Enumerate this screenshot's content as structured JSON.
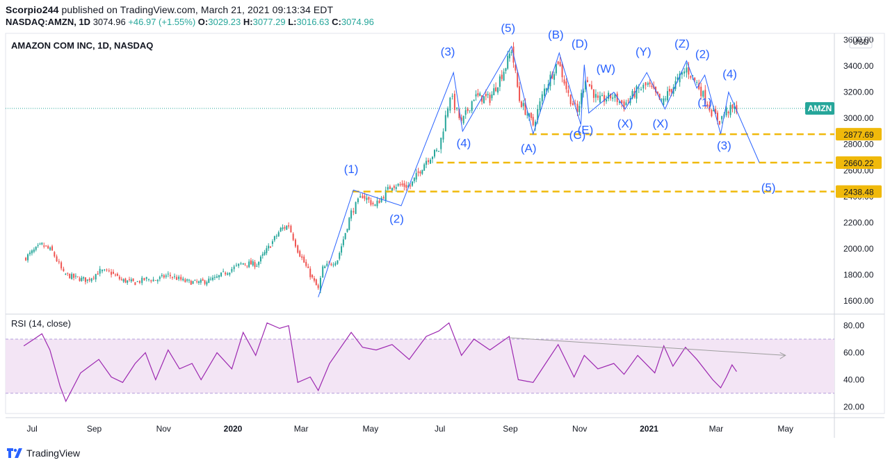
{
  "header": {
    "publisher": "Scorpio244",
    "published_text": " published on TradingView.com, March 21, 2021 09:13:34 EDT",
    "symbol": "NASDAQ:AMZN, 1D",
    "last": "3074.96",
    "change": "+46.97 (+1.55%)",
    "o_label": "O:",
    "o_value": "3029.23",
    "h_label": "H:",
    "h_value": "3077.29",
    "l_label": "L:",
    "l_value": "3016.63",
    "c_label": "C:",
    "c_value": "3074.96"
  },
  "footer": {
    "brand": "TradingView"
  },
  "chart_data": {
    "type": "candlestick",
    "title": "AMAZON COM INC, 1D, NASDAQ",
    "currency": "USD",
    "ticker_badge": "AMZN",
    "current_price": 3074.96,
    "colors": {
      "up": "#26a69a",
      "down": "#ef5350",
      "wave": "#2962ff",
      "level": "#f0b90b",
      "rsi": "#9c27b0",
      "rsi_band": "#f3e5f5"
    },
    "price_axis": {
      "min": 1500,
      "max": 3650,
      "ticks": [
        "1600.00",
        "1800.00",
        "2000.00",
        "2200.00",
        "2400.00",
        "2600.00",
        "2800.00",
        "3000.00",
        "3200.00",
        "3400.00",
        "3600.00"
      ]
    },
    "time_axis": {
      "labels": [
        "Jul",
        "Sep",
        "Nov",
        "2020",
        "Mar",
        "May",
        "Jul",
        "Sep",
        "Nov",
        "2021",
        "Mar",
        "May"
      ],
      "bold": [
        "2020",
        "2021"
      ]
    },
    "price_series": [
      [
        "2019-07-01",
        1922
      ],
      [
        "2019-07-10",
        1985
      ],
      [
        "2019-07-17",
        2030
      ],
      [
        "2019-07-26",
        1980
      ],
      [
        "2019-08-05",
        1810
      ],
      [
        "2019-08-14",
        1780
      ],
      [
        "2019-08-26",
        1760
      ],
      [
        "2019-09-06",
        1830
      ],
      [
        "2019-09-16",
        1815
      ],
      [
        "2019-09-25",
        1760
      ],
      [
        "2019-10-07",
        1740
      ],
      [
        "2019-10-17",
        1770
      ],
      [
        "2019-10-25",
        1760
      ],
      [
        "2019-11-05",
        1800
      ],
      [
        "2019-11-20",
        1750
      ],
      [
        "2019-12-02",
        1740
      ],
      [
        "2019-12-16",
        1770
      ],
      [
        "2019-12-31",
        1847
      ],
      [
        "2020-01-10",
        1890
      ],
      [
        "2020-01-22",
        1880
      ],
      [
        "2020-02-03",
        2030
      ],
      [
        "2020-02-12",
        2150
      ],
      [
        "2020-02-19",
        2180
      ],
      [
        "2020-02-27",
        1990
      ],
      [
        "2020-03-09",
        1800
      ],
      [
        "2020-03-16",
        1690
      ],
      [
        "2020-03-20",
        1850
      ],
      [
        "2020-04-02",
        1920
      ],
      [
        "2020-04-14",
        2280
      ],
      [
        "2020-04-24",
        2410
      ],
      [
        "2020-05-05",
        2330
      ],
      [
        "2020-05-20",
        2490
      ],
      [
        "2020-06-05",
        2480
      ],
      [
        "2020-06-19",
        2680
      ],
      [
        "2020-06-30",
        2758
      ],
      [
        "2020-07-10",
        3180
      ],
      [
        "2020-07-20",
        2960
      ],
      [
        "2020-07-31",
        3165
      ],
      [
        "2020-08-14",
        3150
      ],
      [
        "2020-08-28",
        3400
      ],
      [
        "2020-09-02",
        3530
      ],
      [
        "2020-09-09",
        3140
      ],
      [
        "2020-09-21",
        2950
      ],
      [
        "2020-10-01",
        3220
      ],
      [
        "2020-10-13",
        3440
      ],
      [
        "2020-10-22",
        3180
      ],
      [
        "2020-10-30",
        3040
      ],
      [
        "2020-11-06",
        3310
      ],
      [
        "2020-11-17",
        3130
      ],
      [
        "2020-11-30",
        3170
      ],
      [
        "2020-12-10",
        3100
      ],
      [
        "2020-12-21",
        3210
      ],
      [
        "2020-12-31",
        3256
      ],
      [
        "2021-01-12",
        3120
      ],
      [
        "2021-01-26",
        3290
      ],
      [
        "2021-02-03",
        3380
      ],
      [
        "2021-02-12",
        3270
      ],
      [
        "2021-02-25",
        3050
      ],
      [
        "2021-03-04",
        2980
      ],
      [
        "2021-03-10",
        3060
      ],
      [
        "2021-03-19",
        3074.96
      ]
    ],
    "wave_lines": [
      {
        "points": [
          [
            "2020-03-16",
            1630
          ],
          [
            "2020-04-16",
            2450
          ],
          [
            "2020-05-28",
            2330
          ],
          [
            "2020-07-13",
            3350
          ],
          [
            "2020-07-21",
            2900
          ],
          [
            "2020-09-02",
            3550
          ],
          [
            "2020-09-21",
            2880
          ],
          [
            "2020-10-14",
            3500
          ],
          [
            "2020-11-02",
            2950
          ],
          [
            "2020-11-05",
            3410
          ],
          [
            "2020-11-09",
            3040
          ],
          [
            "2020-12-01",
            3200
          ],
          [
            "2020-12-11",
            3070
          ],
          [
            "2020-12-30",
            3350
          ],
          [
            "2021-01-15",
            3070
          ],
          [
            "2021-02-03",
            3440
          ],
          [
            "2021-02-12",
            3230
          ],
          [
            "2021-02-19",
            3330
          ],
          [
            "2021-03-05",
            2880
          ],
          [
            "2021-03-12",
            3200
          ],
          [
            "2021-04-08",
            2660
          ]
        ]
      }
    ],
    "wave_labels": [
      {
        "text": "(1)",
        "date": "2020-04-14",
        "price": 2580
      },
      {
        "text": "(2)",
        "date": "2020-05-24",
        "price": 2200
      },
      {
        "text": "(3)",
        "date": "2020-07-08",
        "price": 3480
      },
      {
        "text": "(4)",
        "date": "2020-07-22",
        "price": 2780
      },
      {
        "text": "(5)",
        "date": "2020-08-30",
        "price": 3660
      },
      {
        "text": "(A)",
        "date": "2020-09-17",
        "price": 2740
      },
      {
        "text": "(B)",
        "date": "2020-10-11",
        "price": 3610
      },
      {
        "text": "(C)",
        "date": "2020-10-30",
        "price": 2840
      },
      {
        "text": "(D)",
        "date": "2020-11-01",
        "price": 3540
      },
      {
        "text": "(E)",
        "date": "2020-11-06",
        "price": 2880
      },
      {
        "text": "(W)",
        "date": "2020-11-24",
        "price": 3350
      },
      {
        "text": "(X)",
        "date": "2020-12-11",
        "price": 2930
      },
      {
        "text": "(Y)",
        "date": "2020-12-27",
        "price": 3480
      },
      {
        "text": "(X)",
        "date": "2021-01-11",
        "price": 2930
      },
      {
        "text": "(Z)",
        "date": "2021-01-30",
        "price": 3540
      },
      {
        "text": "(2)",
        "date": "2021-02-17",
        "price": 3460
      },
      {
        "text": "(1)",
        "date": "2021-02-19",
        "price": 3090
      },
      {
        "text": "(4)",
        "date": "2021-03-13",
        "price": 3310
      },
      {
        "text": "(3)",
        "date": "2021-03-08",
        "price": 2760
      },
      {
        "text": "(5)",
        "date": "2021-04-16",
        "price": 2440
      }
    ],
    "levels": [
      {
        "price": 2877.69,
        "label": "2877.69",
        "from": "2020-09-18"
      },
      {
        "price": 2660.22,
        "label": "2660.22",
        "from": "2020-06-28"
      },
      {
        "price": 2438.48,
        "label": "2438.48",
        "from": "2020-04-15"
      }
    ],
    "rsi": {
      "title": "RSI (14, close)",
      "ticks": [
        "20.00",
        "40.00",
        "60.00",
        "80.00"
      ],
      "min": 15,
      "max": 88,
      "band": [
        30,
        70
      ],
      "series": [
        [
          "2019-07-01",
          65
        ],
        [
          "2019-07-10",
          70
        ],
        [
          "2019-07-17",
          74
        ],
        [
          "2019-07-24",
          62
        ],
        [
          "2019-08-02",
          35
        ],
        [
          "2019-08-07",
          24
        ],
        [
          "2019-08-20",
          45
        ],
        [
          "2019-09-05",
          55
        ],
        [
          "2019-09-16",
          42
        ],
        [
          "2019-09-26",
          38
        ],
        [
          "2019-10-07",
          52
        ],
        [
          "2019-10-16",
          60
        ],
        [
          "2019-10-25",
          40
        ],
        [
          "2019-11-05",
          62
        ],
        [
          "2019-11-15",
          48
        ],
        [
          "2019-11-26",
          52
        ],
        [
          "2019-12-04",
          40
        ],
        [
          "2019-12-18",
          60
        ],
        [
          "2019-12-31",
          48
        ],
        [
          "2020-01-10",
          75
        ],
        [
          "2020-01-21",
          58
        ],
        [
          "2020-01-31",
          82
        ],
        [
          "2020-02-11",
          78
        ],
        [
          "2020-02-19",
          80
        ],
        [
          "2020-02-27",
          38
        ],
        [
          "2020-03-09",
          42
        ],
        [
          "2020-03-16",
          32
        ],
        [
          "2020-03-26",
          52
        ],
        [
          "2020-04-14",
          75
        ],
        [
          "2020-04-24",
          64
        ],
        [
          "2020-05-06",
          62
        ],
        [
          "2020-05-20",
          66
        ],
        [
          "2020-06-04",
          55
        ],
        [
          "2020-06-19",
          72
        ],
        [
          "2020-06-30",
          76
        ],
        [
          "2020-07-09",
          82
        ],
        [
          "2020-07-20",
          58
        ],
        [
          "2020-07-31",
          70
        ],
        [
          "2020-08-14",
          62
        ],
        [
          "2020-08-31",
          72
        ],
        [
          "2020-09-08",
          40
        ],
        [
          "2020-09-21",
          38
        ],
        [
          "2020-10-02",
          52
        ],
        [
          "2020-10-13",
          66
        ],
        [
          "2020-10-27",
          42
        ],
        [
          "2020-11-05",
          58
        ],
        [
          "2020-11-17",
          48
        ],
        [
          "2020-12-01",
          52
        ],
        [
          "2020-12-10",
          44
        ],
        [
          "2020-12-22",
          58
        ],
        [
          "2021-01-06",
          45
        ],
        [
          "2021-01-14",
          65
        ],
        [
          "2021-01-22",
          50
        ],
        [
          "2021-02-02",
          64
        ],
        [
          "2021-02-12",
          55
        ],
        [
          "2021-02-26",
          40
        ],
        [
          "2021-03-05",
          34
        ],
        [
          "2021-03-10",
          42
        ],
        [
          "2021-03-15",
          51
        ],
        [
          "2021-03-19",
          46
        ]
      ],
      "trendline": [
        [
          "2020-09-01",
          71
        ],
        [
          "2021-05-01",
          58
        ]
      ]
    }
  }
}
